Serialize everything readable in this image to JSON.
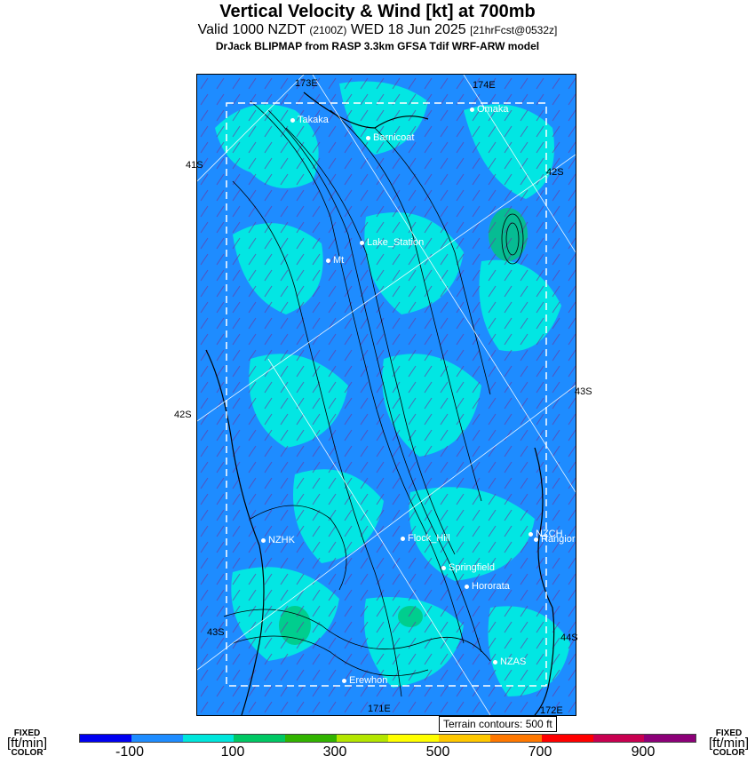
{
  "header": {
    "title": "Vertical Velocity & Wind [kt] at 700mb",
    "valid_prefix": "Valid 1000 NZDT",
    "valid_utc": "(2100Z)",
    "valid_date": "WED 18 Jun 2025",
    "forecast": "[21hrFcst@0532z]",
    "model": "DrJack BLIPMAP from RASP 3.3km GFSA Tdif WRF-ARW model"
  },
  "cities": [
    {
      "name": "Takaka"
    },
    {
      "name": "Omaka"
    },
    {
      "name": "Barnicoat"
    },
    {
      "name": "Lake_Station"
    },
    {
      "name": "Mt"
    },
    {
      "name": "NZHK"
    },
    {
      "name": "Flock_Hill"
    },
    {
      "name": "NZCH"
    },
    {
      "name": "Rangiora"
    },
    {
      "name": "Springfield"
    },
    {
      "name": "Hororata"
    },
    {
      "name": "NZAS"
    },
    {
      "name": "Erewhon"
    }
  ],
  "grid_labels": [
    "173E",
    "174E",
    "41S",
    "42S",
    "42S",
    "43S",
    "43S",
    "44S",
    "171E",
    "172E"
  ],
  "terrain_note": "Terrain contours: 500 ft",
  "colorbar": {
    "left_label": {
      "fixed": "FIXED",
      "units": "[ft/min]",
      "color": "COLOR"
    },
    "right_label": {
      "fixed": "FIXED",
      "units": "[ft/min]",
      "color": "COLOR"
    },
    "ticks": [
      "-100",
      "100",
      "300",
      "500",
      "700",
      "900"
    ],
    "colors": [
      "#0000f0",
      "#1e8cff",
      "#00e6dc",
      "#00c864",
      "#32b400",
      "#b4e600",
      "#ffff00",
      "#ffc800",
      "#ff7800",
      "#ff0000",
      "#c80050",
      "#8c0078"
    ]
  },
  "field_colors": {
    "ocean": "#1e8cff",
    "updraft": "#00f0e0",
    "strong": "#00c878",
    "wind_barb": "#6a3aa0",
    "terrain": "#000000"
  }
}
